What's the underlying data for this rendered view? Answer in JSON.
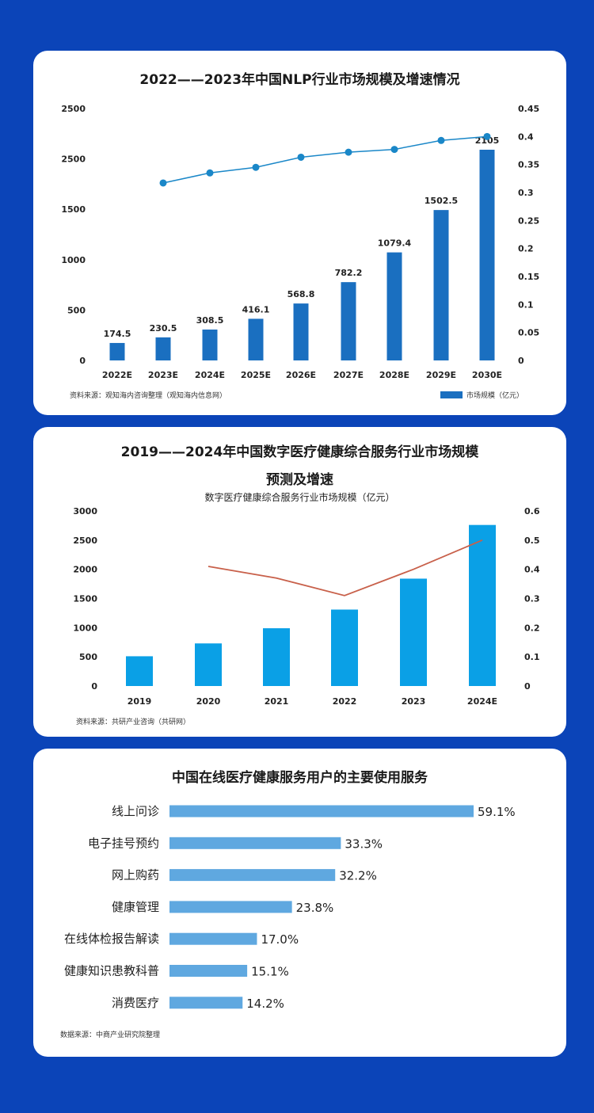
{
  "chart_data": [
    {
      "type": "bar",
      "title": "2022——2023年中国NLP行业市场规模及增速情况",
      "categories": [
        "2022E",
        "2023E",
        "2024E",
        "2025E",
        "2026E",
        "2027E",
        "2028E",
        "2029E",
        "2030E"
      ],
      "series": [
        {
          "name": "市场规模（亿元）",
          "type": "bar",
          "axis": "left",
          "values": [
            174.5,
            230.5,
            308.5,
            416.1,
            568.8,
            782.2,
            1079.4,
            1502.5,
            2105
          ]
        },
        {
          "name": "",
          "type": "line",
          "axis": "right",
          "values": [
            null,
            0.317,
            0.335,
            0.345,
            0.363,
            0.372,
            0.377,
            0.393,
            0.4
          ]
        }
      ],
      "left_ticks": [
        "0",
        "500",
        "1000",
        "1500",
        "2500",
        "2500"
      ],
      "ylim_left": [
        0,
        2500
      ],
      "right_ticks": [
        "0",
        "0.05",
        "0.1",
        "0.15",
        "0.2",
        "0.25",
        "0.3",
        "0.35",
        "0.4",
        "0.45"
      ],
      "ylim_right": [
        0,
        0.45
      ],
      "data_labels": [
        "174.5",
        "230.5",
        "308.5",
        "416.1",
        "568.8",
        "782.2",
        "1079.4",
        "1502.5",
        "2105"
      ],
      "source": "资料来源：观知海内咨询整理（观知海内信息网）",
      "legend": {
        "label": "市场规模（亿元）",
        "placement": "bottom-right"
      },
      "colors": {
        "bar": "#1a6fc0",
        "line": "#1a87c8"
      }
    },
    {
      "type": "bar",
      "title_line1": "2019——2024年中国数字医疗健康综合服务行业市场规模",
      "title_line2": "预测及增速",
      "subtitle": "数字医疗健康综合服务行业市场规模（亿元）",
      "categories": [
        "2019",
        "2020",
        "2021",
        "2022",
        "2023",
        "2024E"
      ],
      "series": [
        {
          "name": "",
          "type": "bar",
          "axis": "left",
          "values": [
            510,
            730,
            990,
            1310,
            1840,
            2760
          ]
        },
        {
          "name": "",
          "type": "line",
          "axis": "right",
          "values": [
            null,
            0.41,
            0.37,
            0.31,
            0.4,
            0.5
          ]
        }
      ],
      "left_ticks": [
        "0",
        "500",
        "1000",
        "1500",
        "2000",
        "2500",
        "3000"
      ],
      "ylim_left": [
        0,
        3000
      ],
      "right_ticks": [
        "0",
        "0.1",
        "0.2",
        "0.3",
        "0.4",
        "0.5",
        "0.6"
      ],
      "ylim_right": [
        0,
        0.6
      ],
      "source": "资料来源：共研产业咨询（共研网）",
      "colors": {
        "bar": "#0aa0e6",
        "line": "#c8604a"
      }
    },
    {
      "type": "bar",
      "orientation": "horizontal",
      "title": "中国在线医疗健康服务用户的主要使用服务",
      "categories": [
        "线上问诊",
        "电子挂号预约",
        "网上购药",
        "健康管理",
        "在线体检报告解读",
        "健康知识患教科普",
        "消费医疗"
      ],
      "values": [
        59.1,
        33.3,
        32.2,
        23.8,
        17.0,
        15.1,
        14.2
      ],
      "value_labels": [
        "59.1%",
        "33.3%",
        "32.2%",
        "23.8%",
        "17.0%",
        "15.1%",
        "14.2%"
      ],
      "source": "数据来源：中商产业研究院整理",
      "colors": {
        "bar": "#5fa8e0"
      }
    }
  ]
}
